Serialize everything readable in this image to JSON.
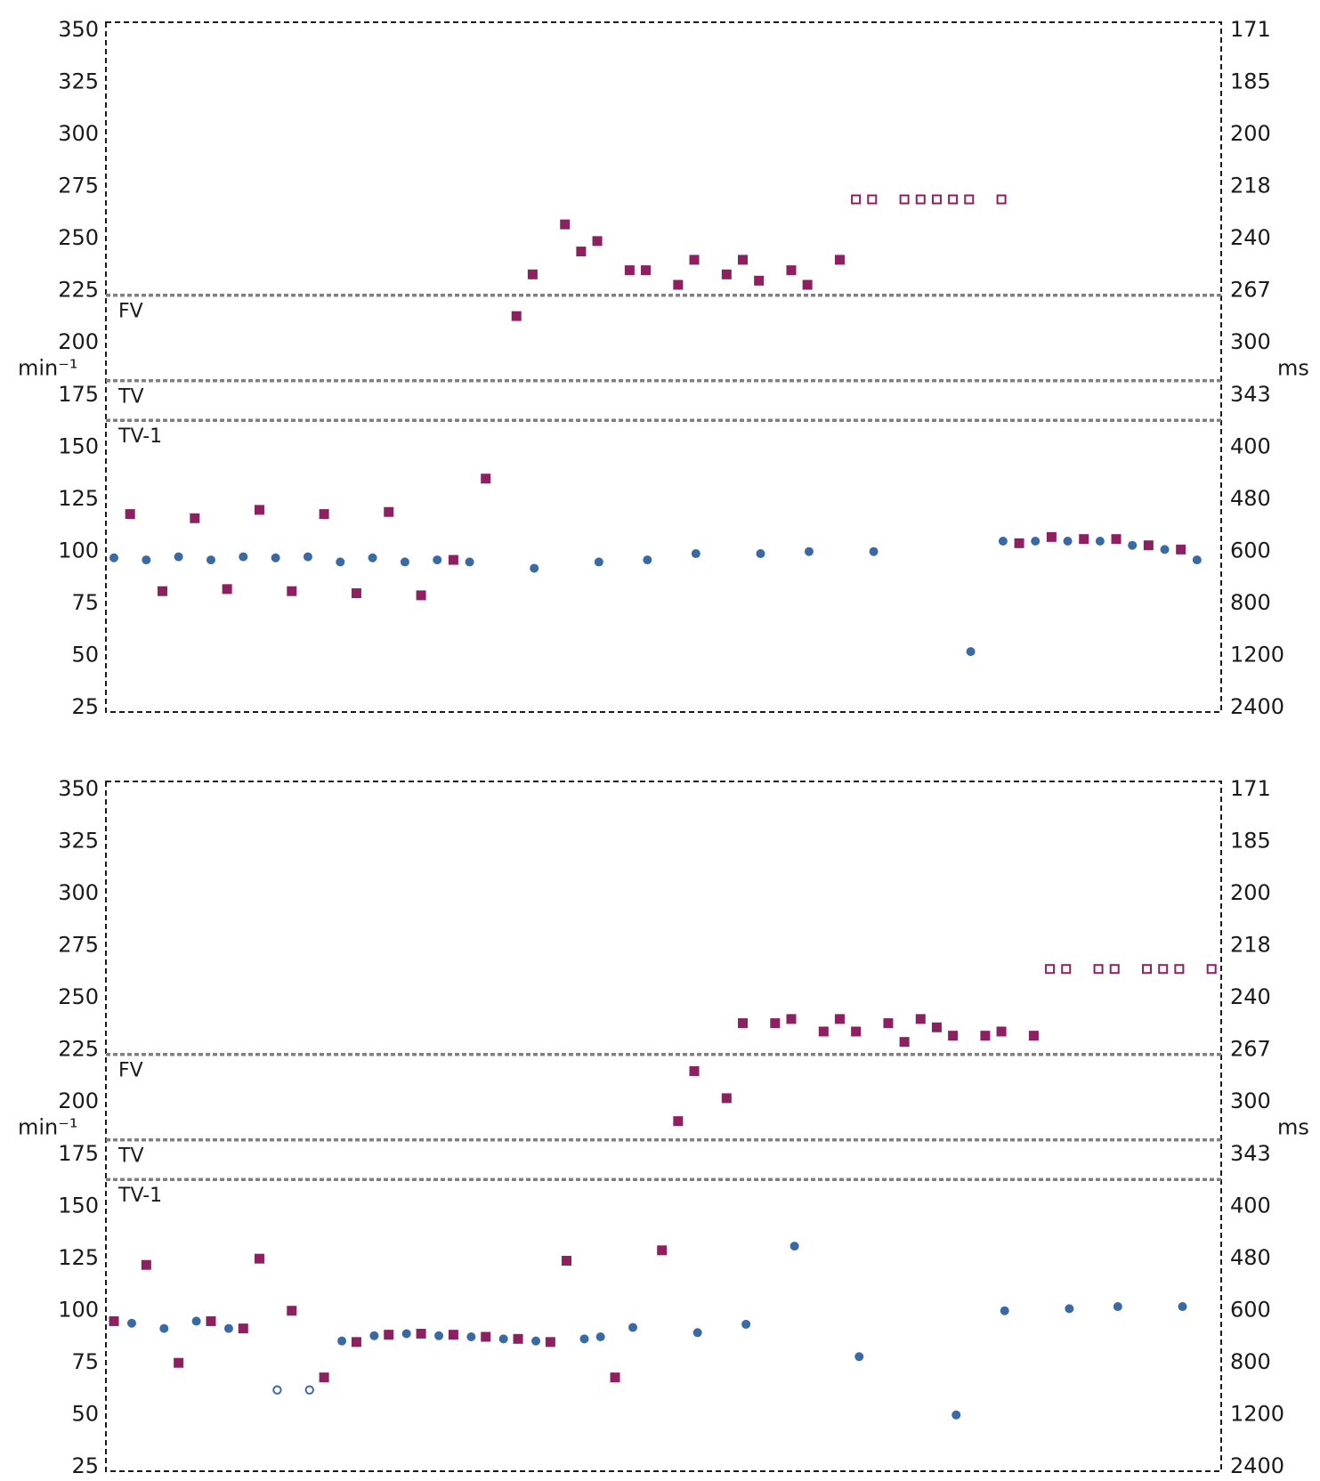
{
  "chart_data": [
    {
      "type": "scatter",
      "y_left_unit": "min⁻¹",
      "y_right_unit": "ms",
      "ylim": [
        22,
        353
      ],
      "xlim": [
        0,
        68
      ],
      "left_ticks": [
        "350",
        "325",
        "300",
        "275",
        "250",
        "225",
        "200",
        "175",
        "150",
        "125",
        "100",
        "75",
        "50",
        "25"
      ],
      "left_tick_values": [
        350,
        325,
        300,
        275,
        250,
        225,
        200,
        175,
        150,
        125,
        100,
        75,
        50,
        25
      ],
      "right_ticks": [
        "171",
        "185",
        "200",
        "218",
        "240",
        "267",
        "300",
        "343",
        "400",
        "480",
        "600",
        "800",
        "1200",
        "2400"
      ],
      "zones": [
        {
          "label": "FV",
          "y": 222
        },
        {
          "label": "TV",
          "y": 181
        },
        {
          "label": "TV-1",
          "y": 162
        }
      ],
      "colors": {
        "atrial": "#3a6aa5",
        "ventricular": "#8c2060",
        "zone_line": "#808080"
      },
      "series": [
        {
          "marker": "circle-filled",
          "color": "#3a6aa5",
          "points": [
            [
              0,
              96
            ],
            [
              2,
              95
            ],
            [
              4,
              96.5
            ],
            [
              6,
              95
            ],
            [
              8,
              96.5
            ],
            [
              10,
              96
            ],
            [
              12,
              96.5
            ],
            [
              14,
              94
            ],
            [
              16,
              96
            ],
            [
              18,
              94
            ],
            [
              20,
              95
            ],
            [
              22,
              94
            ],
            [
              26,
              91
            ],
            [
              30,
              94
            ],
            [
              33,
              95
            ],
            [
              36,
              98
            ],
            [
              40,
              98
            ],
            [
              43,
              99
            ],
            [
              47,
              99
            ],
            [
              53,
              51
            ],
            [
              55,
              104
            ],
            [
              57,
              104
            ],
            [
              59,
              104
            ],
            [
              61,
              104
            ],
            [
              63,
              102
            ],
            [
              65,
              100
            ],
            [
              67,
              95
            ]
          ]
        },
        {
          "marker": "square-filled",
          "color": "#8c2060",
          "points": [
            [
              1,
              117
            ],
            [
              3,
              80
            ],
            [
              5,
              115
            ],
            [
              7,
              81
            ],
            [
              9,
              119
            ],
            [
              11,
              80
            ],
            [
              13,
              117
            ],
            [
              15,
              79
            ],
            [
              17,
              118
            ],
            [
              19,
              78
            ],
            [
              21,
              95
            ],
            [
              23,
              134
            ],
            [
              24.9,
              212
            ],
            [
              25.9,
              232
            ],
            [
              27.9,
              256
            ],
            [
              28.9,
              243
            ],
            [
              29.9,
              248
            ],
            [
              31.9,
              234
            ],
            [
              32.9,
              234
            ],
            [
              34.9,
              227
            ],
            [
              35.9,
              239
            ],
            [
              37.9,
              232
            ],
            [
              38.9,
              239
            ],
            [
              39.9,
              229
            ],
            [
              41.9,
              234
            ],
            [
              42.9,
              227
            ],
            [
              44.9,
              239
            ],
            [
              56,
              103
            ],
            [
              58,
              106
            ],
            [
              60,
              105
            ],
            [
              62,
              105
            ],
            [
              64,
              102
            ],
            [
              66,
              100
            ]
          ]
        },
        {
          "marker": "square-open",
          "color": "#8c2060",
          "points": [
            [
              45.9,
              268
            ],
            [
              46.9,
              268
            ],
            [
              48.9,
              268
            ],
            [
              49.9,
              268
            ],
            [
              50.9,
              268
            ],
            [
              51.9,
              268
            ],
            [
              52.9,
              268
            ],
            [
              54.9,
              268
            ]
          ]
        }
      ]
    },
    {
      "type": "scatter",
      "y_left_unit": "min⁻¹",
      "y_right_unit": "ms",
      "ylim": [
        22,
        353
      ],
      "xlim": [
        0,
        68
      ],
      "left_ticks": [
        "350",
        "325",
        "300",
        "275",
        "250",
        "225",
        "200",
        "175",
        "150",
        "125",
        "100",
        "75",
        "50",
        "25"
      ],
      "left_tick_values": [
        350,
        325,
        300,
        275,
        250,
        225,
        200,
        175,
        150,
        125,
        100,
        75,
        50,
        25
      ],
      "right_ticks": [
        "171",
        "185",
        "200",
        "218",
        "240",
        "267",
        "300",
        "343",
        "400",
        "480",
        "600",
        "800",
        "1200",
        "2400"
      ],
      "zones": [
        {
          "label": "FV",
          "y": 222
        },
        {
          "label": "TV",
          "y": 181
        },
        {
          "label": "TV-1",
          "y": 162
        }
      ],
      "colors": {
        "atrial": "#3a6aa5",
        "ventricular": "#8c2060",
        "zone_line": "#808080"
      },
      "series": [
        {
          "marker": "circle-filled",
          "color": "#3a6aa5",
          "points": [
            [
              1.1,
              93
            ],
            [
              3.1,
              90.5
            ],
            [
              5.1,
              94
            ],
            [
              7.1,
              90.5
            ],
            [
              14.1,
              84.5
            ],
            [
              16.1,
              87
            ],
            [
              18.1,
              88
            ],
            [
              20.1,
              87
            ],
            [
              22.1,
              86.5
            ],
            [
              24.1,
              85.5
            ],
            [
              26.1,
              84.5
            ],
            [
              29.1,
              85.5
            ],
            [
              30.1,
              86.5
            ],
            [
              32.1,
              91
            ],
            [
              36.1,
              88.5
            ],
            [
              39.1,
              92.5
            ],
            [
              42.1,
              130
            ],
            [
              46.1,
              77
            ],
            [
              52.1,
              49
            ],
            [
              55.1,
              99
            ],
            [
              59.1,
              100
            ],
            [
              62.1,
              101
            ],
            [
              66.1,
              101
            ]
          ]
        },
        {
          "marker": "circle-open",
          "color": "#3a6aa5",
          "points": [
            [
              10.1,
              61
            ],
            [
              12.1,
              61
            ]
          ]
        },
        {
          "marker": "square-filled",
          "color": "#8c2060",
          "points": [
            [
              0,
              94
            ],
            [
              2,
              121
            ],
            [
              4,
              74
            ],
            [
              6,
              94
            ],
            [
              8,
              90.5
            ],
            [
              9,
              124
            ],
            [
              11,
              99
            ],
            [
              13,
              67
            ],
            [
              15,
              84
            ],
            [
              17,
              87.5
            ],
            [
              19,
              88
            ],
            [
              21,
              87.5
            ],
            [
              23,
              86.5
            ],
            [
              25,
              85.5
            ],
            [
              27,
              84
            ],
            [
              28,
              123
            ],
            [
              31,
              67
            ],
            [
              33.9,
              128
            ],
            [
              34.9,
              190
            ],
            [
              35.9,
              214
            ],
            [
              37.9,
              201
            ],
            [
              38.9,
              237
            ],
            [
              40.9,
              237
            ],
            [
              41.9,
              239
            ],
            [
              43.9,
              233
            ],
            [
              44.9,
              239
            ],
            [
              45.9,
              233
            ],
            [
              47.9,
              237
            ],
            [
              48.9,
              228
            ],
            [
              49.9,
              239
            ],
            [
              50.9,
              235
            ],
            [
              51.9,
              231
            ],
            [
              53.9,
              231
            ],
            [
              54.9,
              233
            ],
            [
              56.9,
              231
            ]
          ]
        },
        {
          "marker": "square-open",
          "color": "#8c2060",
          "points": [
            [
              57.9,
              263
            ],
            [
              58.9,
              263
            ],
            [
              60.9,
              263
            ],
            [
              61.9,
              263
            ],
            [
              63.9,
              263
            ],
            [
              64.9,
              263
            ],
            [
              65.9,
              263
            ],
            [
              67.9,
              263
            ]
          ]
        }
      ]
    }
  ]
}
